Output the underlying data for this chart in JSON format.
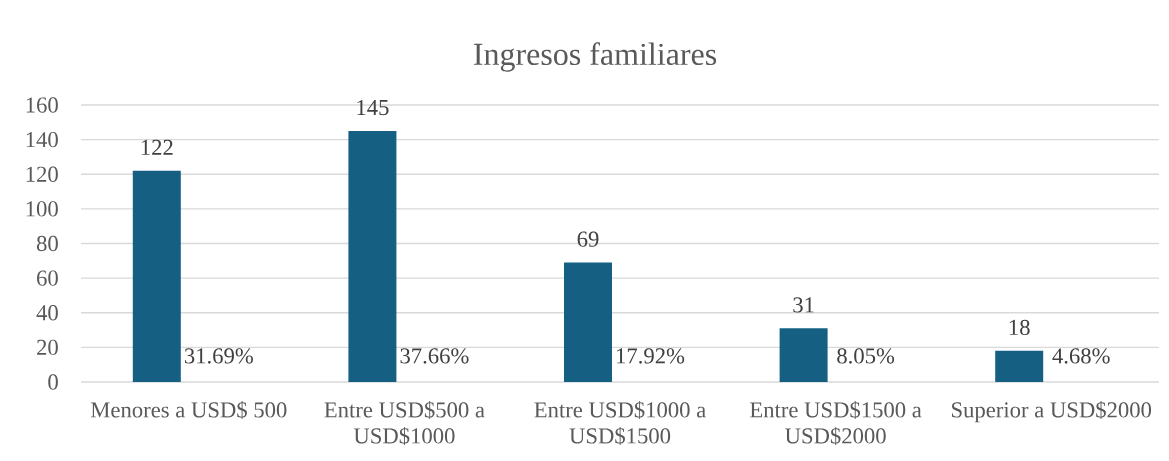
{
  "chart_data": {
    "type": "bar",
    "title": "Ingresos familiares",
    "categories": [
      "Menores a USD$ 500",
      "Entre USD$500 a USD$1000",
      "Entre USD$1000 a USD$1500",
      "Entre USD$1500 a USD$2000",
      "Superior a USD$2000"
    ],
    "values": [
      122,
      145,
      69,
      31,
      18
    ],
    "color": "#156082",
    "data_labels": true,
    "annotations": [
      "31.69%",
      "37.66%",
      "17.92%",
      "8.05%",
      "4.68%"
    ],
    "ylim": [
      0,
      160
    ],
    "yticks": [
      0,
      20,
      40,
      60,
      80,
      100,
      120,
      140,
      160
    ],
    "grid": "y"
  }
}
